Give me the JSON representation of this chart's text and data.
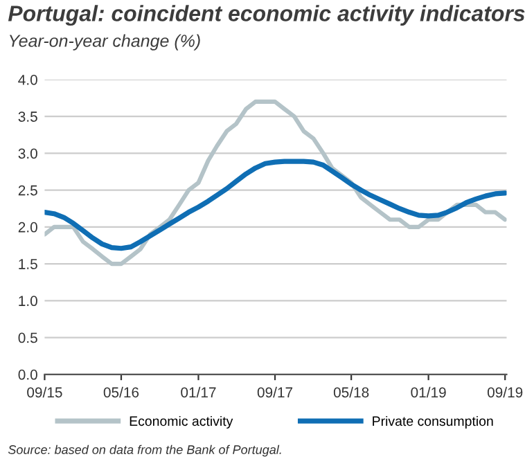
{
  "chart_data": {
    "type": "line",
    "title": "Portugal: coincident economic activity indicators",
    "subtitle": "Year-on-year change (%)",
    "x": [
      "2015-09",
      "2015-10",
      "2015-11",
      "2015-12",
      "2016-01",
      "2016-02",
      "2016-03",
      "2016-04",
      "2016-05",
      "2016-06",
      "2016-07",
      "2016-08",
      "2016-09",
      "2016-10",
      "2016-11",
      "2016-12",
      "2017-01",
      "2017-02",
      "2017-03",
      "2017-04",
      "2017-05",
      "2017-06",
      "2017-07",
      "2017-08",
      "2017-09",
      "2017-10",
      "2017-11",
      "2017-12",
      "2018-01",
      "2018-02",
      "2018-03",
      "2018-04",
      "2018-05",
      "2018-06",
      "2018-07",
      "2018-08",
      "2018-09",
      "2018-10",
      "2018-11",
      "2018-12",
      "2019-01",
      "2019-02",
      "2019-03",
      "2019-04",
      "2019-05",
      "2019-06",
      "2019-07",
      "2019-08",
      "2019-09"
    ],
    "series": [
      {
        "name": "Economic activity",
        "color": "#b4c3c8",
        "values": [
          1.9,
          2.0,
          2.0,
          2.0,
          1.8,
          1.7,
          1.6,
          1.5,
          1.5,
          1.6,
          1.7,
          1.9,
          2.0,
          2.1,
          2.3,
          2.5,
          2.6,
          2.9,
          3.1,
          3.3,
          3.4,
          3.6,
          3.7,
          3.7,
          3.7,
          3.6,
          3.5,
          3.3,
          3.2,
          3.0,
          2.8,
          2.7,
          2.6,
          2.4,
          2.3,
          2.2,
          2.1,
          2.1,
          2.0,
          2.0,
          2.1,
          2.1,
          2.2,
          2.3,
          2.3,
          2.3,
          2.2,
          2.2,
          2.1
        ]
      },
      {
        "name": "Private consumption",
        "color": "#0f6eb4",
        "values": [
          2.2,
          2.18,
          2.13,
          2.05,
          1.95,
          1.85,
          1.77,
          1.72,
          1.71,
          1.73,
          1.8,
          1.88,
          1.96,
          2.04,
          2.12,
          2.2,
          2.27,
          2.35,
          2.43,
          2.52,
          2.62,
          2.72,
          2.8,
          2.86,
          2.88,
          2.89,
          2.89,
          2.89,
          2.88,
          2.84,
          2.76,
          2.67,
          2.58,
          2.5,
          2.43,
          2.37,
          2.31,
          2.25,
          2.2,
          2.16,
          2.15,
          2.16,
          2.2,
          2.26,
          2.33,
          2.38,
          2.42,
          2.45,
          2.46
        ]
      }
    ],
    "xlim": [
      "2015-09",
      "2019-09"
    ],
    "xticks": [
      {
        "value": "2015-09",
        "label": "09/15"
      },
      {
        "value": "2016-05",
        "label": "05/16"
      },
      {
        "value": "2017-01",
        "label": "01/17"
      },
      {
        "value": "2017-09",
        "label": "09/17"
      },
      {
        "value": "2018-05",
        "label": "05/18"
      },
      {
        "value": "2019-01",
        "label": "01/19"
      },
      {
        "value": "2019-09",
        "label": "09/19"
      }
    ],
    "ylim": [
      0,
      4
    ],
    "yticks": [
      {
        "value": 0,
        "label": "0.0"
      },
      {
        "value": 0.5,
        "label": "0.5"
      },
      {
        "value": 1,
        "label": "1.0"
      },
      {
        "value": 1.5,
        "label": "1.5"
      },
      {
        "value": 2,
        "label": "2.0"
      },
      {
        "value": 2.5,
        "label": "2.5"
      },
      {
        "value": 3,
        "label": "3.0"
      },
      {
        "value": 3.5,
        "label": "3.5"
      },
      {
        "value": 4,
        "label": "4.0"
      }
    ],
    "grid": "y",
    "legend": "bottom",
    "line_style": "solid",
    "marker": "none",
    "annotations": [
      "Source: based on data from the Bank of Portugal."
    ]
  }
}
